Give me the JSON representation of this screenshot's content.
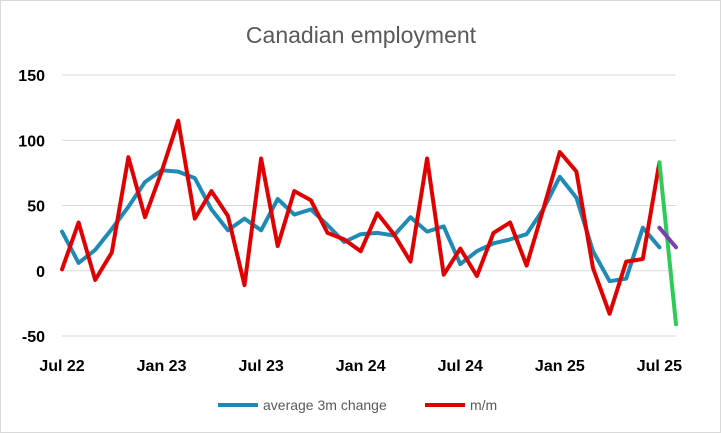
{
  "chart_data": {
    "type": "line",
    "title": "Canadian employment",
    "xlabel": "",
    "ylabel": "",
    "ylim": [
      -50,
      150
    ],
    "yticks": [
      -50,
      0,
      50,
      100,
      150
    ],
    "grid": true,
    "legend_position": "bottom",
    "x_tick_labels": [
      "Jul 22",
      "Jan 23",
      "Jul 23",
      "Jan 24",
      "Jul 24",
      "Jan 25",
      "Jul 25"
    ],
    "x_tick_months": [
      0,
      6,
      12,
      18,
      24,
      30,
      36
    ],
    "months": 37,
    "series": [
      {
        "name": "average 3m change",
        "color": "#1f8bb5",
        "values": [
          30,
          6,
          16,
          32,
          49,
          68,
          77,
          76,
          71,
          47,
          31,
          40,
          31,
          55,
          43,
          47,
          35,
          22,
          28,
          29,
          27,
          41,
          30,
          34,
          5,
          15,
          21,
          24,
          28,
          47,
          72,
          56,
          15,
          -8,
          -6,
          33,
          18
        ]
      },
      {
        "name": "m/m",
        "color": "#e00000",
        "values": [
          1,
          37,
          -7,
          14,
          87,
          41,
          76,
          115,
          40,
          61,
          42,
          -11,
          86,
          19,
          61,
          54,
          29,
          24,
          15,
          44,
          28,
          7,
          86,
          -3,
          17,
          -4,
          29,
          37,
          4,
          47,
          91,
          76,
          2,
          -33,
          7,
          9,
          83
        ]
      }
    ],
    "extra_segments": [
      {
        "color": "#2ecc56",
        "from": [
          36,
          83
        ],
        "to": [
          37,
          -41
        ]
      },
      {
        "color": "#7b3fb0",
        "from": [
          36,
          33
        ],
        "to": [
          37,
          18
        ]
      }
    ]
  }
}
